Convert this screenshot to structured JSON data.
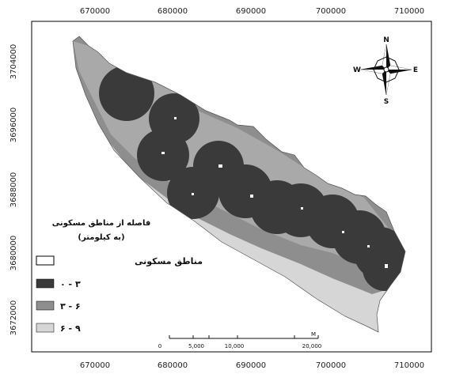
{
  "axes": {
    "x_ticks": [
      "670000",
      "680000",
      "690000",
      "700000",
      "710000"
    ],
    "y_ticks": [
      "3704000",
      "3696000",
      "3688000",
      "3680000",
      "3672000"
    ]
  },
  "compass": {
    "n": "N",
    "s": "S",
    "e": "E",
    "w": "W"
  },
  "legend": {
    "title_line1": "فاصله از مناطق مسکونی",
    "title_line2": "(به کیلومتر)",
    "items": [
      {
        "label": "مناطق مسکونی",
        "color": "#ffffff"
      },
      {
        "label": "۰ - ۳",
        "color": "#3a3a3a"
      },
      {
        "label": "۳ - ۶",
        "color": "#8e8e8e"
      },
      {
        "label": "۶ - ۹",
        "color": "#d6d6d6"
      }
    ]
  },
  "scale_bar": {
    "labels": [
      "0",
      "5,000",
      "10,000",
      "20,000"
    ],
    "unit": "M"
  },
  "colors": {
    "band_0_3": "#3a3a3a",
    "band_3_6": "#8e8e8e",
    "band_6_9": "#d6d6d6",
    "background_band": "#a9a9a9"
  }
}
